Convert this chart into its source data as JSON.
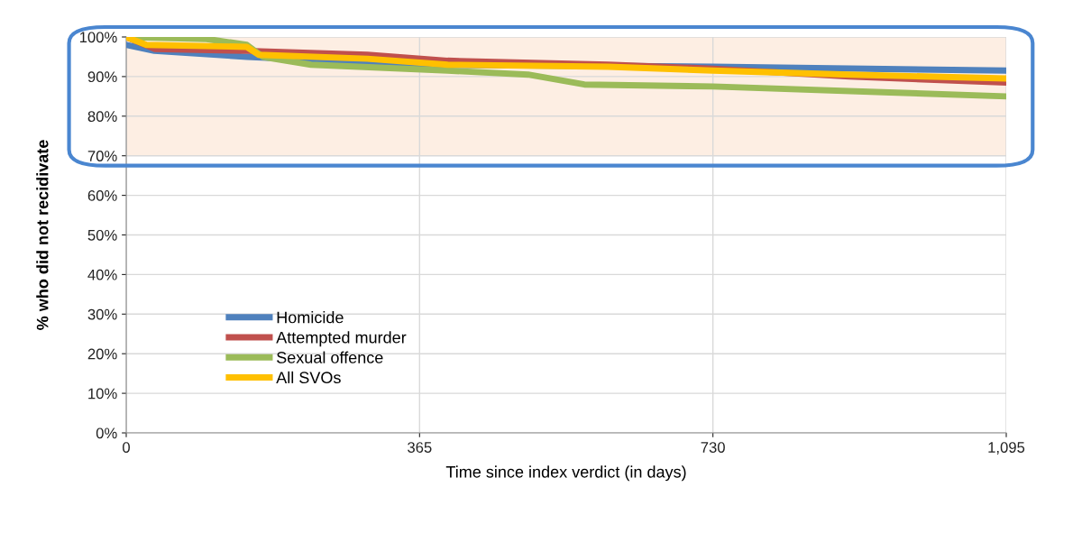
{
  "chart_data": {
    "type": "line",
    "xlabel": "Time since index verdict (in days)",
    "ylabel": "% who did not recidivate",
    "xlim": [
      0,
      1095
    ],
    "xticks": [
      0,
      365,
      730,
      {
        "value": 1095,
        "label": "1,095"
      }
    ],
    "ylim": [
      0,
      100
    ],
    "yticks": [
      {
        "value": 0,
        "label": "0%"
      },
      {
        "value": 10,
        "label": "10%"
      },
      {
        "value": 20,
        "label": "20%"
      },
      {
        "value": 30,
        "label": "30%"
      },
      {
        "value": 40,
        "label": "40%"
      },
      {
        "value": 50,
        "label": "50%"
      },
      {
        "value": 60,
        "label": "60%"
      },
      {
        "value": 70,
        "label": "70%"
      },
      {
        "value": 80,
        "label": "80%"
      },
      {
        "value": 90,
        "label": "90%"
      },
      {
        "value": 100,
        "label": "100%"
      }
    ],
    "grid": true,
    "legend": "bottom left",
    "marker": "none",
    "line_style": "solid",
    "bands": [
      {
        "axis": "y",
        "from": 70,
        "to": 100,
        "color": "#fdeee3"
      }
    ],
    "series": [
      {
        "name": "Homicide",
        "color": "#4f81bd",
        "x": [
          0,
          35,
          150,
          365,
          730,
          1095
        ],
        "values": [
          98,
          96.5,
          95,
          93,
          92.5,
          91.5
        ]
      },
      {
        "name": "Attempted murder",
        "color": "#c0504d",
        "x": [
          0,
          35,
          150,
          300,
          400,
          600,
          730,
          900,
          1095
        ],
        "values": [
          100,
          97,
          96.5,
          95.5,
          94,
          93,
          92,
          90,
          88.5
        ]
      },
      {
        "name": "Sexual offence",
        "color": "#9bbb59",
        "x": [
          0,
          100,
          150,
          170,
          230,
          400,
          500,
          570,
          730,
          950,
          1095
        ],
        "values": [
          100,
          99.5,
          98,
          95,
          93,
          91.5,
          90.5,
          88,
          87.5,
          86,
          85
        ]
      },
      {
        "name": "All SVOs",
        "color": "#ffc000",
        "x": [
          0,
          25,
          150,
          165,
          300,
          400,
          600,
          730,
          900,
          1095
        ],
        "values": [
          100,
          98,
          97.5,
          95.5,
          94.5,
          93,
          92.5,
          91.5,
          90.5,
          89.5
        ]
      }
    ]
  }
}
